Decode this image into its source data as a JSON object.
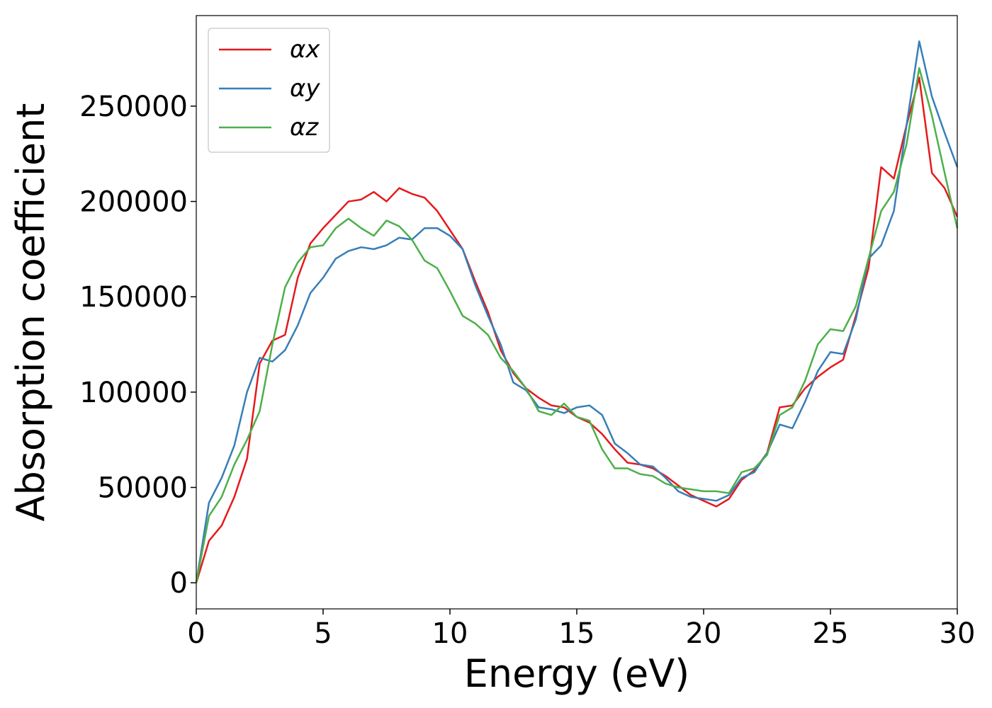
{
  "chart_data": {
    "type": "line",
    "xlabel": "Energy (eV)",
    "ylabel": "Absorption coefficient",
    "x": [
      0,
      0.5,
      1,
      1.5,
      2,
      2.5,
      3,
      3.5,
      4,
      4.5,
      5,
      5.5,
      6,
      6.5,
      7,
      7.5,
      8,
      8.5,
      9,
      9.5,
      10,
      10.5,
      11,
      11.5,
      12,
      12.5,
      13,
      13.5,
      14,
      14.5,
      15,
      15.5,
      16,
      16.5,
      17,
      17.5,
      18,
      18.5,
      19,
      19.5,
      20,
      20.5,
      21,
      21.5,
      22,
      22.5,
      23,
      23.5,
      24,
      24.5,
      25,
      25.5,
      26,
      26.5,
      27,
      27.5,
      28,
      28.5,
      29,
      29.5,
      30
    ],
    "series": [
      {
        "name": "αx",
        "color": "#e41a1c",
        "values": [
          0,
          22000,
          30000,
          45000,
          65000,
          115000,
          127000,
          130000,
          160000,
          178000,
          186000,
          193000,
          200000,
          201000,
          205000,
          200000,
          207000,
          204000,
          202000,
          195000,
          185000,
          175000,
          158000,
          142000,
          122000,
          110000,
          102000,
          97000,
          93000,
          92000,
          87000,
          84000,
          78000,
          70000,
          63000,
          62000,
          60000,
          56000,
          51000,
          46000,
          43000,
          40000,
          44000,
          54000,
          59000,
          68000,
          92000,
          93000,
          102000,
          108000,
          113000,
          117000,
          140000,
          165000,
          218000,
          212000,
          240000,
          265000,
          215000,
          207000,
          192000
        ]
      },
      {
        "name": "αy",
        "color": "#377eb8",
        "values": [
          0,
          42000,
          55000,
          72000,
          100000,
          118000,
          116000,
          122000,
          135000,
          152000,
          160000,
          170000,
          174000,
          176000,
          175000,
          177000,
          181000,
          180000,
          186000,
          186000,
          182000,
          175000,
          156000,
          140000,
          125000,
          105000,
          101000,
          92000,
          91000,
          89000,
          92000,
          93000,
          88000,
          73000,
          68000,
          62000,
          61000,
          55000,
          48000,
          45000,
          44000,
          43000,
          46000,
          55000,
          58000,
          68000,
          83000,
          81000,
          95000,
          111000,
          121000,
          120000,
          138000,
          170000,
          177000,
          195000,
          240000,
          284000,
          255000,
          236000,
          218000
        ]
      },
      {
        "name": "αz",
        "color": "#4daf4a",
        "values": [
          0,
          35000,
          45000,
          62000,
          75000,
          90000,
          125000,
          155000,
          168000,
          176000,
          177000,
          186000,
          191000,
          186000,
          182000,
          190000,
          187000,
          180000,
          169000,
          165000,
          153000,
          140000,
          136000,
          130000,
          118000,
          111000,
          102000,
          90000,
          88000,
          94000,
          87000,
          85000,
          70000,
          60000,
          60000,
          57000,
          56000,
          52000,
          50000,
          49000,
          48000,
          48000,
          47000,
          58000,
          60000,
          67000,
          88000,
          92000,
          106000,
          125000,
          133000,
          132000,
          145000,
          170000,
          195000,
          205000,
          230000,
          270000,
          245000,
          215000,
          186000
        ]
      }
    ],
    "xlim": [
      0,
      30
    ],
    "ylim": [
      -13700,
      297500
    ],
    "xticks": [
      0,
      5,
      10,
      15,
      20,
      25,
      30
    ],
    "yticks": [
      0,
      50000,
      100000,
      150000,
      200000,
      250000
    ],
    "legend": "upper left"
  }
}
